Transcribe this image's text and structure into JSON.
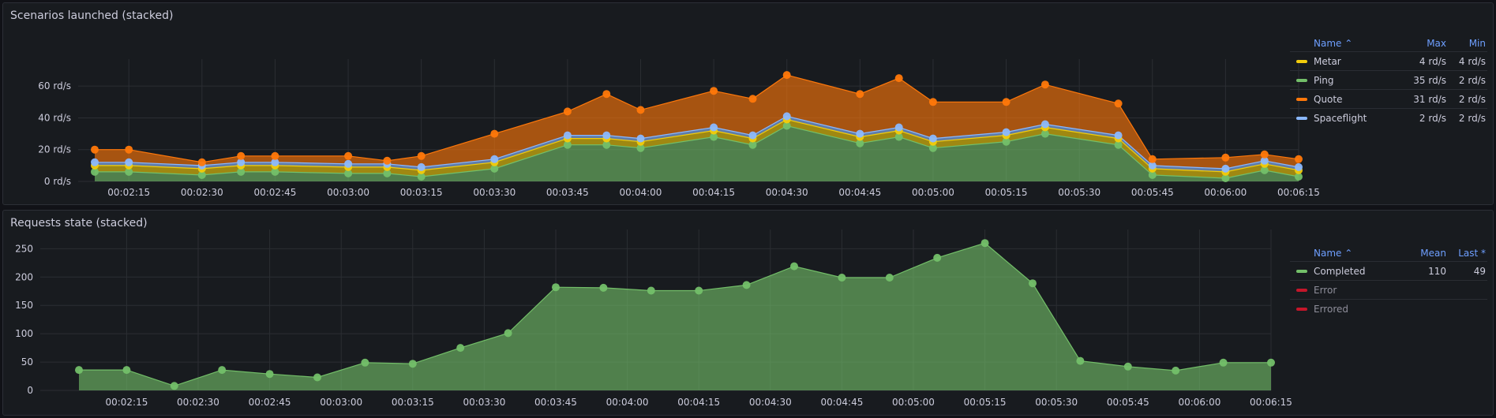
{
  "panels": {
    "scenarios": {
      "title": "Scenarios launched (stacked)",
      "legend": {
        "headers": {
          "name": "Name ⌃",
          "v1": "Max",
          "v2": "Min"
        },
        "rows": [
          {
            "name": "Metar",
            "v1": "4 rd/s",
            "v2": "4 rd/s",
            "color": "#f2cc0c"
          },
          {
            "name": "Ping",
            "v1": "35 rd/s",
            "v2": "2 rd/s",
            "color": "#73bf69"
          },
          {
            "name": "Quote",
            "v1": "31 rd/s",
            "v2": "2 rd/s",
            "color": "#ff780a"
          },
          {
            "name": "Spaceflight",
            "v1": "2 rd/s",
            "v2": "2 rd/s",
            "color": "#8ab8ff"
          }
        ]
      }
    },
    "requests": {
      "title": "Requests state (stacked)",
      "legend": {
        "headers": {
          "name": "Name ⌃",
          "v1": "Mean",
          "v2": "Last *"
        },
        "rows": [
          {
            "name": "Completed",
            "v1": "110",
            "v2": "49",
            "color": "#73bf69",
            "muted": false
          },
          {
            "name": "Error",
            "v1": "",
            "v2": "",
            "color": "#c4162a",
            "muted": true
          },
          {
            "name": "Errored",
            "v1": "",
            "v2": "",
            "color": "#c4162a",
            "muted": true
          }
        ]
      }
    }
  },
  "chart_data": [
    {
      "type": "area",
      "stacked": true,
      "title": "Scenarios launched (stacked)",
      "x": [
        "00:02:08",
        "00:02:15",
        "00:02:30",
        "00:02:38",
        "00:02:45",
        "00:03:00",
        "00:03:08",
        "00:03:15",
        "00:03:30",
        "00:03:45",
        "00:03:53",
        "00:04:00",
        "00:04:15",
        "00:04:23",
        "00:04:30",
        "00:04:45",
        "00:04:53",
        "00:05:00",
        "00:05:15",
        "00:05:23",
        "00:05:38",
        "00:05:45",
        "00:06:00",
        "00:06:08",
        "00:06:15"
      ],
      "x_ticks": [
        "00:02:15",
        "00:02:30",
        "00:02:45",
        "00:03:00",
        "00:03:15",
        "00:03:30",
        "00:03:45",
        "00:04:00",
        "00:04:15",
        "00:04:30",
        "00:04:45",
        "00:05:00",
        "00:05:15",
        "00:05:30",
        "00:05:45",
        "00:06:00",
        "00:06:15"
      ],
      "y_ticks": [
        "0 rd/s",
        "20 rd/s",
        "40 rd/s",
        "60 rd/s"
      ],
      "ylim": [
        0,
        72
      ],
      "unit": "rd/s",
      "series": [
        {
          "name": "Ping",
          "color": "#73bf69",
          "values": [
            6,
            6,
            4,
            6,
            6,
            5,
            5,
            3,
            8,
            23,
            23,
            21,
            28,
            23,
            35,
            24,
            28,
            21,
            25,
            30,
            23,
            4,
            2,
            7,
            3
          ]
        },
        {
          "name": "Metar",
          "color": "#f2cc0c",
          "values": [
            4,
            4,
            4,
            4,
            4,
            4,
            4,
            4,
            4,
            4,
            4,
            4,
            4,
            4,
            4,
            4,
            4,
            4,
            4,
            4,
            4,
            4,
            4,
            4,
            4
          ]
        },
        {
          "name": "Spaceflight",
          "color": "#8ab8ff",
          "values": [
            2,
            2,
            2,
            2,
            2,
            2,
            2,
            2,
            2,
            2,
            2,
            2,
            2,
            2,
            2,
            2,
            2,
            2,
            2,
            2,
            2,
            2,
            2,
            2,
            2
          ]
        },
        {
          "name": "Quote",
          "color": "#ff780a",
          "values": [
            8,
            8,
            2,
            4,
            4,
            5,
            2,
            7,
            16,
            15,
            26,
            18,
            23,
            23,
            26,
            25,
            31,
            23,
            19,
            25,
            20,
            4,
            7,
            4,
            5
          ]
        }
      ]
    },
    {
      "type": "area",
      "stacked": true,
      "title": "Requests state (stacked)",
      "x": [
        "00:02:05",
        "00:02:15",
        "00:02:25",
        "00:02:35",
        "00:02:45",
        "00:02:55",
        "00:03:05",
        "00:03:15",
        "00:03:25",
        "00:03:35",
        "00:03:45",
        "00:03:55",
        "00:04:05",
        "00:04:15",
        "00:04:25",
        "00:04:35",
        "00:04:45",
        "00:04:55",
        "00:05:05",
        "00:05:15",
        "00:05:25",
        "00:05:35",
        "00:05:45",
        "00:05:55",
        "00:06:05",
        "00:06:15"
      ],
      "x_ticks": [
        "00:02:15",
        "00:02:30",
        "00:02:45",
        "00:03:00",
        "00:03:15",
        "00:03:30",
        "00:03:45",
        "00:04:00",
        "00:04:15",
        "00:04:30",
        "00:04:45",
        "00:05:00",
        "00:05:15",
        "00:05:30",
        "00:05:45",
        "00:06:00",
        "00:06:15"
      ],
      "y_ticks": [
        "0",
        "50",
        "100",
        "150",
        "200",
        "250"
      ],
      "ylim": [
        0,
        270
      ],
      "series": [
        {
          "name": "Completed",
          "color": "#73bf69",
          "values": [
            36,
            36,
            8,
            36,
            29,
            23,
            49,
            47,
            75,
            101,
            182,
            181,
            176,
            176,
            186,
            219,
            199,
            199,
            234,
            260,
            189,
            52,
            42,
            35,
            49,
            49
          ]
        }
      ]
    }
  ]
}
